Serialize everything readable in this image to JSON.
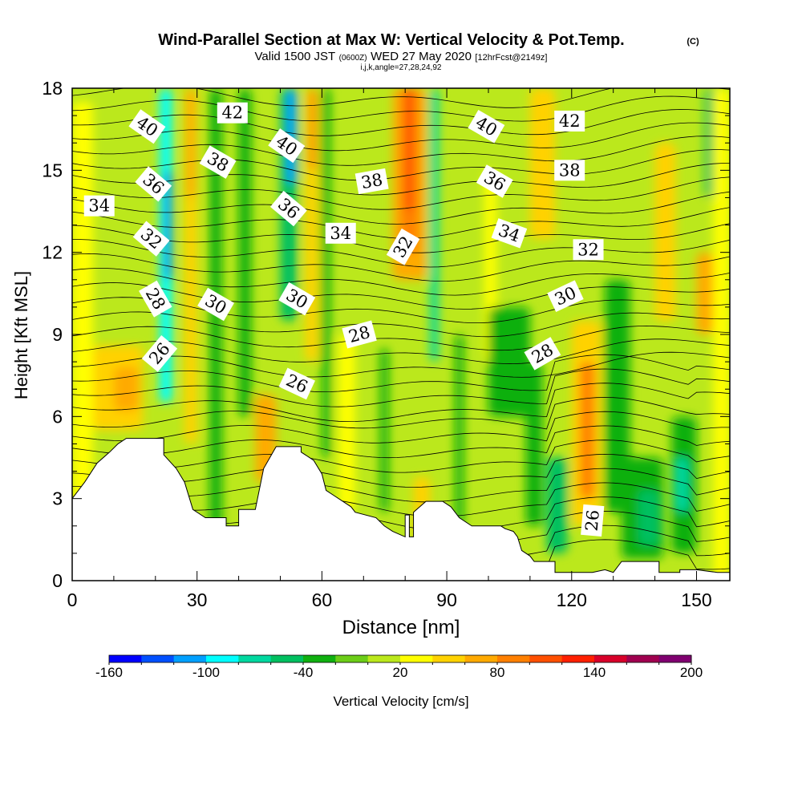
{
  "title": {
    "main": "Wind-Parallel Section at Max W: Vertical Velocity & Pot.Temp.",
    "mark": "(C)",
    "valid_a": "Valid 1500 JST",
    "valid_b": "(0600Z)",
    "valid_c": "WED 27 May 2020",
    "valid_d": "[12hrFcst@2149z]",
    "ijk": "i,j,k,angle=27,28,24,92"
  },
  "chart_data": {
    "type": "heatmap",
    "xlabel": "Distance [nm]",
    "ylabel": "Height [Kft MSL]",
    "xlim": [
      0,
      158
    ],
    "ylim": [
      0,
      18
    ],
    "x_ticks": [
      "0",
      "30",
      "60",
      "90",
      "120",
      "150"
    ],
    "y_ticks": [
      "0",
      "3",
      "6",
      "9",
      "12",
      "15",
      "18"
    ],
    "colorbar": {
      "label": "Vertical Velocity [cm/s]",
      "tick_labels": [
        "-160",
        "-100",
        "-40",
        "20",
        "80",
        "140",
        "200"
      ],
      "levels": [
        -160,
        -140,
        -120,
        -100,
        -80,
        -60,
        -40,
        -20,
        0,
        20,
        40,
        60,
        80,
        100,
        120,
        140,
        160,
        180,
        200
      ],
      "colors": [
        "#0000ff",
        "#0050ff",
        "#00a0ff",
        "#00ffff",
        "#00d8a0",
        "#00c060",
        "#10b010",
        "#6ccd18",
        "#bbe81c",
        "#ffff00",
        "#ffd200",
        "#ffaa00",
        "#ff8000",
        "#ff5000",
        "#ff2000",
        "#d8002a",
        "#a00050",
        "#800070"
      ]
    },
    "velocity_field": {
      "background_cm_s": 10,
      "cells": [
        {
          "x": 0,
          "w": 5,
          "y0": 2.5,
          "y1": 17.5,
          "v": 35
        },
        {
          "x": 5,
          "w": 12,
          "y0": 5.5,
          "y1": 8.6,
          "v": 45
        },
        {
          "x": 10,
          "w": 6,
          "y0": 6.2,
          "y1": 7.8,
          "v": 60
        },
        {
          "x": 21,
          "w": 3,
          "y0": 6.5,
          "y1": 18,
          "v": -90
        },
        {
          "x": 22,
          "w": 2,
          "y0": 11,
          "y1": 15,
          "v": -110
        },
        {
          "x": 27,
          "w": 3,
          "y0": 5,
          "y1": 18,
          "v": 50
        },
        {
          "x": 27.5,
          "w": 2,
          "y0": 14,
          "y1": 18,
          "v": 70
        },
        {
          "x": 33,
          "w": 3,
          "y0": 1.5,
          "y1": 18,
          "v": -40
        },
        {
          "x": 40,
          "w": 3,
          "y0": 6,
          "y1": 18,
          "v": -40
        },
        {
          "x": 44,
          "w": 5,
          "y0": 3.6,
          "y1": 6.8,
          "v": 60
        },
        {
          "x": 46,
          "w": 2.5,
          "y0": 4.5,
          "y1": 5.8,
          "v": 75
        },
        {
          "x": 50,
          "w": 4,
          "y0": 9.5,
          "y1": 18,
          "v": -60
        },
        {
          "x": 51.5,
          "w": 2.5,
          "y0": 14.5,
          "y1": 18,
          "v": -120
        },
        {
          "x": 56,
          "w": 3,
          "y0": 8,
          "y1": 18,
          "v": 55
        },
        {
          "x": 57,
          "w": 1.5,
          "y0": 15,
          "y1": 18,
          "v": 80
        },
        {
          "x": 60,
          "w": 2,
          "y0": 4.5,
          "y1": 18,
          "v": -40
        },
        {
          "x": 64,
          "w": 4,
          "y0": 2.5,
          "y1": 9,
          "v": 35
        },
        {
          "x": 74,
          "w": 2,
          "y0": 2.5,
          "y1": 8.5,
          "v": -40
        },
        {
          "x": 77,
          "w": 8,
          "y0": 11,
          "y1": 18,
          "v": 65
        },
        {
          "x": 79,
          "w": 4,
          "y0": 12,
          "y1": 18,
          "v": 95
        },
        {
          "x": 80,
          "w": 2,
          "y0": 13.5,
          "y1": 18,
          "v": 115
        },
        {
          "x": 86,
          "w": 2,
          "y0": 8,
          "y1": 18,
          "v": -70
        },
        {
          "x": 82,
          "w": 4,
          "y0": 1.5,
          "y1": 3.8,
          "v": 40
        },
        {
          "x": 92,
          "w": 2,
          "y0": 2,
          "y1": 9,
          "v": -40
        },
        {
          "x": 99,
          "w": 3,
          "y0": 8,
          "y1": 15,
          "v": 35
        },
        {
          "x": 110,
          "w": 6,
          "y0": 12.5,
          "y1": 18,
          "v": 40
        },
        {
          "x": 100,
          "w": 10,
          "y0": 6,
          "y1": 10,
          "v": -40
        },
        {
          "x": 109,
          "w": 4,
          "y0": 2,
          "y1": 8,
          "v": -40
        },
        {
          "x": 114,
          "w": 5,
          "y0": 1,
          "y1": 4.5,
          "v": -45
        },
        {
          "x": 120,
          "w": 7,
          "y0": 2,
          "y1": 9.5,
          "v": 50
        },
        {
          "x": 122,
          "w": 3.5,
          "y0": 3,
          "y1": 8,
          "v": 80
        },
        {
          "x": 122.5,
          "w": 2.5,
          "y0": 4,
          "y1": 6.5,
          "v": 95
        },
        {
          "x": 128,
          "w": 6,
          "y0": 2.5,
          "y1": 11,
          "v": -40
        },
        {
          "x": 132,
          "w": 10,
          "y0": 0.8,
          "y1": 4.5,
          "v": -40
        },
        {
          "x": 136,
          "w": 5,
          "y0": 1.3,
          "y1": 3.3,
          "v": -60
        },
        {
          "x": 140,
          "w": 5,
          "y0": 9.5,
          "y1": 16,
          "v": 40
        },
        {
          "x": 144,
          "w": 6,
          "y0": 1,
          "y1": 6,
          "v": -40
        },
        {
          "x": 145,
          "w": 3,
          "y0": 2.5,
          "y1": 4.5,
          "v": -80
        },
        {
          "x": 150,
          "w": 4,
          "y0": 9,
          "y1": 12,
          "v": 60
        },
        {
          "x": 152,
          "w": 3,
          "y0": 14,
          "y1": 18,
          "v": -45
        },
        {
          "x": 154,
          "w": 4,
          "y0": 0,
          "y1": 18,
          "v": 30
        }
      ]
    },
    "terrain_kft": [
      [
        0,
        3.0
      ],
      [
        3,
        3.6
      ],
      [
        6,
        4.3
      ],
      [
        9,
        4.7
      ],
      [
        11,
        5.0
      ],
      [
        13,
        5.2
      ],
      [
        22,
        5.2
      ],
      [
        22,
        4.6
      ],
      [
        25,
        4.1
      ],
      [
        27,
        3.6
      ],
      [
        29,
        2.6
      ],
      [
        32,
        2.3
      ],
      [
        37,
        2.3
      ],
      [
        37,
        2.0
      ],
      [
        40,
        2.0
      ],
      [
        40,
        2.6
      ],
      [
        44,
        2.6
      ],
      [
        46,
        4.1
      ],
      [
        49,
        4.9
      ],
      [
        55,
        4.9
      ],
      [
        55,
        4.7
      ],
      [
        58,
        4.4
      ],
      [
        60,
        3.9
      ],
      [
        61,
        3.3
      ],
      [
        63,
        3.1
      ],
      [
        65,
        2.9
      ],
      [
        67,
        2.7
      ],
      [
        68,
        2.5
      ],
      [
        73,
        2.3
      ],
      [
        75,
        2.0
      ],
      [
        77,
        1.8
      ],
      [
        80,
        1.6
      ],
      [
        80,
        2.4
      ],
      [
        81,
        2.4
      ],
      [
        81,
        1.6
      ],
      [
        82,
        1.6
      ],
      [
        82,
        2.5
      ],
      [
        85,
        2.9
      ],
      [
        88,
        2.9
      ],
      [
        89,
        2.9
      ],
      [
        91,
        2.7
      ],
      [
        93,
        2.3
      ],
      [
        96,
        2.0
      ],
      [
        103,
        2.0
      ],
      [
        104,
        1.9
      ],
      [
        106,
        1.8
      ],
      [
        107,
        1.6
      ],
      [
        108,
        1.1
      ],
      [
        110,
        0.9
      ],
      [
        111,
        0.7
      ],
      [
        116,
        0.7
      ],
      [
        116,
        0.3
      ],
      [
        120,
        0.3
      ],
      [
        121,
        0.3
      ],
      [
        125,
        0.3
      ],
      [
        128,
        0.4
      ],
      [
        130,
        0.3
      ],
      [
        132,
        0.7
      ],
      [
        140,
        0.7
      ],
      [
        141,
        0.7
      ],
      [
        141,
        0.3
      ],
      [
        146,
        0.3
      ],
      [
        146,
        0.4
      ],
      [
        150,
        0.4
      ],
      [
        155,
        0.3
      ]
    ],
    "theta_contour_labels": [
      {
        "text": "40",
        "x": 18,
        "y": 16.6,
        "angle": 35
      },
      {
        "text": "42",
        "x": 38.5,
        "y": 17.1,
        "angle": 0
      },
      {
        "text": "40",
        "x": 51.5,
        "y": 15.9,
        "angle": 35
      },
      {
        "text": "40",
        "x": 99.5,
        "y": 16.6,
        "angle": 30
      },
      {
        "text": "42",
        "x": 119.5,
        "y": 16.8,
        "angle": 0
      },
      {
        "text": "36",
        "x": 19.5,
        "y": 14.5,
        "angle": 40
      },
      {
        "text": "38",
        "x": 35,
        "y": 15.3,
        "angle": 30
      },
      {
        "text": "38",
        "x": 72,
        "y": 14.6,
        "angle": -10
      },
      {
        "text": "36",
        "x": 52,
        "y": 13.6,
        "angle": 40
      },
      {
        "text": "36",
        "x": 101.5,
        "y": 14.6,
        "angle": 30
      },
      {
        "text": "38",
        "x": 119.5,
        "y": 15.0,
        "angle": 0
      },
      {
        "text": "34",
        "x": 6.5,
        "y": 13.7,
        "angle": 0
      },
      {
        "text": "34",
        "x": 64.5,
        "y": 12.7,
        "angle": 0
      },
      {
        "text": "32",
        "x": 19,
        "y": 12.5,
        "angle": 40
      },
      {
        "text": "32",
        "x": 79.5,
        "y": 12.2,
        "angle": -60
      },
      {
        "text": "34",
        "x": 105,
        "y": 12.7,
        "angle": 20
      },
      {
        "text": "32",
        "x": 124,
        "y": 12.1,
        "angle": 0
      },
      {
        "text": "28",
        "x": 20,
        "y": 10.3,
        "angle": 60
      },
      {
        "text": "30",
        "x": 34.5,
        "y": 10.1,
        "angle": 30
      },
      {
        "text": "30",
        "x": 54,
        "y": 10.3,
        "angle": 30
      },
      {
        "text": "28",
        "x": 69,
        "y": 9.0,
        "angle": -15
      },
      {
        "text": "30",
        "x": 118.5,
        "y": 10.4,
        "angle": -25
      },
      {
        "text": "26",
        "x": 21,
        "y": 8.3,
        "angle": -50
      },
      {
        "text": "26",
        "x": 54,
        "y": 7.2,
        "angle": 25
      },
      {
        "text": "28",
        "x": 113,
        "y": 8.3,
        "angle": -30
      },
      {
        "text": "26",
        "x": 125,
        "y": 2.2,
        "angle": -85
      }
    ]
  }
}
